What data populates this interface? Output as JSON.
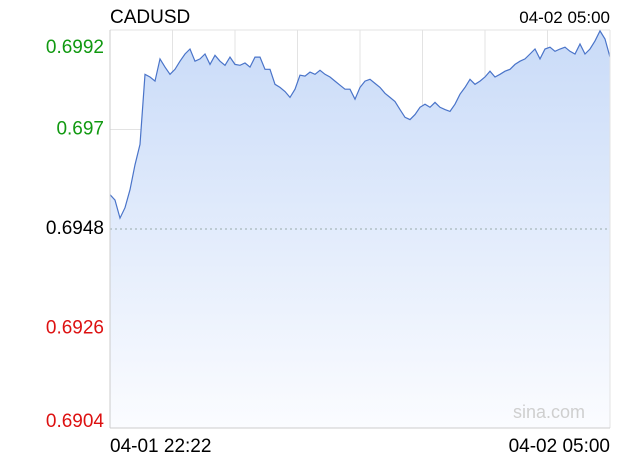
{
  "chart_data": {
    "type": "area",
    "title": "CADUSD",
    "time": "04-02 05:00",
    "watermark": "sina.com",
    "categories": [
      "04-01 22:22",
      null,
      null,
      null,
      null,
      null,
      null,
      null,
      null,
      null,
      null,
      null,
      null,
      null,
      null,
      null,
      null,
      null,
      null,
      null,
      null,
      null,
      null,
      null,
      null,
      null,
      null,
      null,
      null,
      null,
      null,
      null,
      null,
      null,
      null,
      null,
      null,
      null,
      null,
      null,
      null,
      null,
      null,
      null,
      null,
      null,
      null,
      null,
      null,
      null,
      null,
      null,
      null,
      null,
      null,
      null,
      null,
      null,
      null,
      null,
      null,
      null,
      null,
      null,
      null,
      null,
      null,
      null,
      null,
      null,
      null,
      null,
      null,
      null,
      null,
      null,
      null,
      null,
      null,
      null,
      null,
      null,
      null,
      null,
      null,
      null,
      null,
      null,
      null,
      null,
      null,
      null,
      null,
      null,
      null,
      null,
      null,
      null,
      null,
      null,
      "04-02 05:00"
    ],
    "values": [
      0.69556,
      0.69544,
      0.69504,
      0.69527,
      0.69567,
      0.69622,
      0.69667,
      0.69822,
      0.69816,
      0.69807,
      0.69856,
      0.69838,
      0.69822,
      0.69833,
      0.69851,
      0.69867,
      0.69878,
      0.69851,
      0.69856,
      0.69867,
      0.69844,
      0.69864,
      0.69851,
      0.69842,
      0.6986,
      0.69844,
      0.69842,
      0.69847,
      0.69838,
      0.6986,
      0.6986,
      0.69833,
      0.69833,
      0.698,
      0.69793,
      0.69784,
      0.69771,
      0.69789,
      0.6982,
      0.69818,
      0.69827,
      0.69822,
      0.69831,
      0.69822,
      0.69816,
      0.69807,
      0.69798,
      0.69789,
      0.69789,
      0.69767,
      0.69793,
      0.69807,
      0.69811,
      0.69802,
      0.69793,
      0.6978,
      0.69771,
      0.69762,
      0.69744,
      0.69727,
      0.69722,
      0.69733,
      0.69749,
      0.69756,
      0.69749,
      0.6976,
      0.69749,
      0.69744,
      0.6974,
      0.69756,
      0.69778,
      0.69793,
      0.69811,
      0.698,
      0.69807,
      0.69816,
      0.69829,
      0.69816,
      0.69822,
      0.69829,
      0.69833,
      0.69844,
      0.69851,
      0.69856,
      0.69867,
      0.69878,
      0.69856,
      0.69878,
      0.69882,
      0.69873,
      0.69878,
      0.69882,
      0.69873,
      0.69867,
      0.69889,
      0.69867,
      0.69878,
      0.69896,
      0.69918,
      0.699,
      0.6986
    ],
    "color": "#4a74c9",
    "reference_line": 0.6948,
    "ylim": [
      0.6904,
      0.6992
    ],
    "yticks": [
      0.6992,
      0.697,
      0.6948,
      0.6926,
      0.6904
    ],
    "grid": true
  }
}
